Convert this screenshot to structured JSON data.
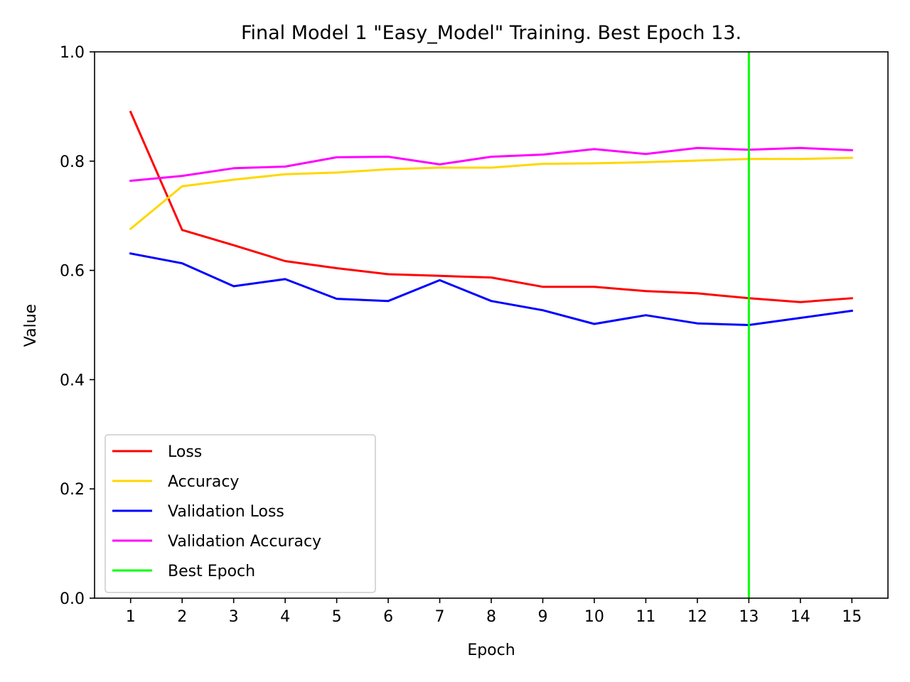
{
  "chart_data": {
    "type": "line",
    "title": "Final Model 1 \"Easy_Model\" Training. Best Epoch 13.",
    "xlabel": "Epoch",
    "ylabel": "Value",
    "x": [
      1,
      2,
      3,
      4,
      5,
      6,
      7,
      8,
      9,
      10,
      11,
      12,
      13,
      14,
      15
    ],
    "xlim": [
      0.3,
      15.7
    ],
    "ylim": [
      0.0,
      1.0
    ],
    "yticks": [
      "0.0",
      "0.2",
      "0.4",
      "0.6",
      "0.8",
      "1.0"
    ],
    "xticks": [
      "1",
      "2",
      "3",
      "4",
      "5",
      "6",
      "7",
      "8",
      "9",
      "10",
      "11",
      "12",
      "13",
      "14",
      "15"
    ],
    "grid": false,
    "legend_position": "lower-left",
    "series": [
      {
        "name": "Loss",
        "color": "#ff0000",
        "values": [
          0.89,
          0.674,
          0.646,
          0.617,
          0.604,
          0.593,
          0.59,
          0.587,
          0.57,
          0.57,
          0.562,
          0.558,
          0.549,
          0.542,
          0.549
        ]
      },
      {
        "name": "Accuracy",
        "color": "#ffd700",
        "values": [
          0.676,
          0.754,
          0.766,
          0.776,
          0.779,
          0.785,
          0.788,
          0.788,
          0.795,
          0.796,
          0.798,
          0.801,
          0.804,
          0.804,
          0.806
        ]
      },
      {
        "name": "Validation Loss",
        "color": "#0000ff",
        "values": [
          0.631,
          0.613,
          0.571,
          0.584,
          0.548,
          0.544,
          0.582,
          0.544,
          0.527,
          0.502,
          0.518,
          0.503,
          0.5,
          0.513,
          0.526
        ]
      },
      {
        "name": "Validation  Accuracy",
        "color": "#ff00ff",
        "values": [
          0.764,
          0.773,
          0.787,
          0.79,
          0.807,
          0.808,
          0.794,
          0.808,
          0.812,
          0.822,
          0.813,
          0.824,
          0.821,
          0.824,
          0.82
        ]
      }
    ],
    "best_epoch": {
      "name": "Best Epoch",
      "x": 13,
      "color": "#00ff00"
    }
  }
}
